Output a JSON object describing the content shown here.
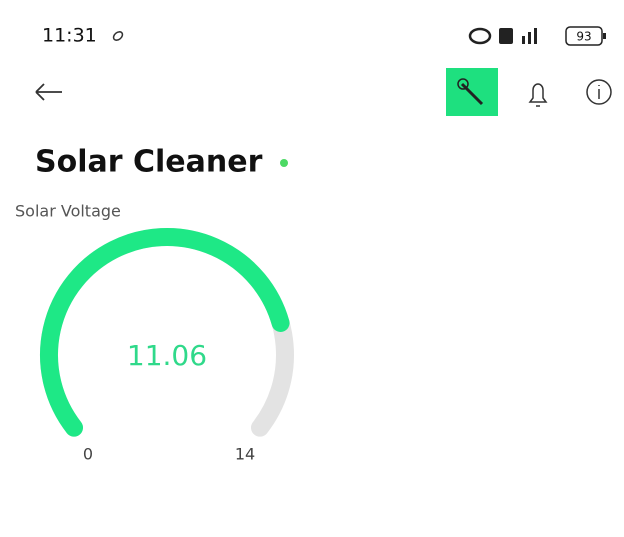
{
  "status_bar": {
    "time": "11:31",
    "battery": 93
  },
  "header": {
    "title": "Solar Cleaner"
  },
  "widget": {
    "label": "Solar Voltage",
    "value": 11.06,
    "min": 0,
    "max": 14
  }
}
